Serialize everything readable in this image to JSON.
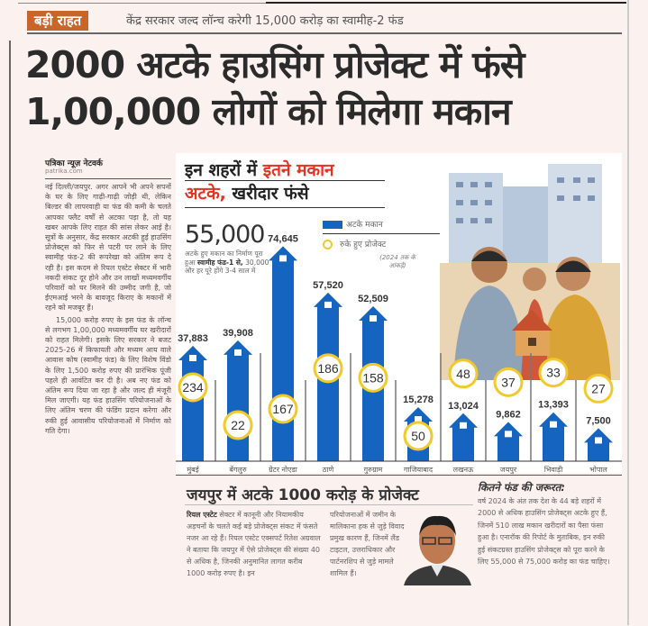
{
  "kicker": {
    "badge": "बड़ी राहत",
    "text": "केंद्र सरकार जल्द लॉन्च करेगी 15,000 करोड़ का स्वामीह-2 फंड"
  },
  "headline": {
    "line1": "2000 अटके हाउसिंग प्रोजेक्ट में फंसे",
    "line2": "1,00,000 लोगों को मिलेगा मकान"
  },
  "byline": {
    "name": "पत्रिका न्यूज़ नेटवर्क",
    "site": "patrika.com"
  },
  "article": {
    "paragraphs": [
      "नई दिल्ली/जयपुर. अगर आपने भी अपने सपनों के घर के लिए गाढ़ी-गाढ़ी जोड़ी थी, लेकिन बिल्डर की लापरवाही या फंड की कमी के चलते आपका फ्लैट वर्षों से अटका पड़ा है, तो यह खबर आपके लिए राहत की सांस लेकर आई है। सूत्रों के अनुसार, केंद्र सरकार अटकी हुई हाउसिंग प्रोजेक्ट्स को फिर से पटरी पर लाने के लिए स्वामीह फंड-2 की रूपरेखा को अंतिम रूप दे रही है। इस कदम से रियल एस्टेट सेक्टर में भारी नकदी संकट दूर होने और उन लाखों मध्यमवर्गीय परिवारों को घर मिलने की उम्मीद जगी है, जो ईएमआई भरने के बावजूद किराए के मकानों में रहने को मजबूर हैं।",
      "15,000 करोड़ रुपए के इस फंड के लॉन्च से लगभग 1,00,000 मध्यमवर्गीय घर खरीदारों को राहत मिलेगी। इसके लिए सरकार ने बजट 2025-26 में किफायती और मध्यम आय वाले आवास कोष (स्वामीह फंड) के लिए विशेष विंडो के लिए 1,500 करोड़ रुपए की प्रारंभिक पूंजी पहले ही आवंटित कर दी है। अब नए फंड को अंतिम रूप दिया जा रहा है और जल्द ही मंजूरी मिल जाएगी। यह फंड हाउसिंग परियोजनाओं के लिए अंतिम चरण की फंडिंग प्रदान करेगा और रुकी हुई आवासीय परियोजनाओं में निर्माण को गति देगा।"
    ]
  },
  "infographic": {
    "title_part1": "इन शहरों में ",
    "title_part2": "इतने मकान",
    "title_part3": "अटके,",
    "title_part4": " खरीदार फंसे",
    "highlight": "55,000",
    "highlight_note_1": "अटके हुए मकान का निर्माण पूरा हुआ",
    "highlight_note_2": "स्वामीह फंड-1 से,",
    "highlight_note_3": "30,000 और हर पूरे होंगे 3-4 साल में",
    "legend": {
      "bars": "अटके मकान",
      "circles": "रुके हुए प्रोजेक्ट",
      "note": "(2024 तक के आंकड़े)"
    },
    "colors": {
      "bar": "#1565c0",
      "circle": "#f2c92a",
      "red": "#e53322"
    }
  },
  "chart_data": {
    "type": "bar",
    "title": "इन शहरों में इतने मकान अटके, खरीदार फंसे",
    "categories": [
      "मुंबई",
      "बेंगलुरु",
      "ग्रेटर नोएडा",
      "ठाणे",
      "गुरुग्राम",
      "गाजियाबाद",
      "लखनऊ",
      "जयपुर",
      "भिवाड़ी",
      "भोपाल"
    ],
    "series": [
      {
        "name": "अटके मकान",
        "values": [
          37883,
          39908,
          74645,
          57520,
          52509,
          15278,
          13024,
          9862,
          13393,
          7500
        ],
        "labels": [
          "37,883",
          "39,908",
          "74,645",
          "57,520",
          "52,509",
          "15,278",
          "13,024",
          "9,862",
          "13,393",
          "7,500"
        ]
      },
      {
        "name": "रुके हुए प्रोजेक्ट",
        "values": [
          234,
          22,
          167,
          186,
          158,
          50,
          48,
          37,
          33,
          27
        ]
      }
    ],
    "xlabel": "",
    "ylabel": "",
    "ylim": [
      0,
      80000
    ]
  },
  "jaipur": {
    "title": "जयपुर में अटके 1000 करोड़ के प्रोजेक्ट",
    "col1_lead": "रियल एस्टेट",
    "col1": " सेक्टर में कानूनी और नियामकीय अड़चनों के चलते कई बड़े प्रोजेक्ट्स संकट में फंसते नजर आ रहे हैं। रियल एस्टेट एक्सपर्ट रितेश अग्रवाल ने बताया कि जयपुर में ऐसे प्रोजेक्ट्स की संख्या 40 से अधिक है, जिनकी अनुमानित लागत करीब 1000 करोड़ रुपए है। इन",
    "col2": "परियोजनाओं में जमीन के मालिकाना हक से जुड़े विवाद प्रमुख कारण हैं, जिनमें लैंड टाइटल, उत्तराधिकार और पार्टनरशिप से जुड़े मामले शामिल हैं।"
  },
  "fund": {
    "title": "कितने फंड की जरूरत:",
    "body": "वर्ष 2024 के अंत तक देश के 44 बड़े शहरों में 2000 से अधिक हाउसिंग प्रोजेक्ट्स अटके हुए हैं, जिनमें 510 लाख मकान खरीदारों का पैसा फंसा हुआ है। एनारॉक की रिपोर्ट के मुताबिक, इन रुकी हुई संकटग्रस्त हाउसिंग प्रोजेक्ट्स को पूरा करने के लिए 55,000 से 75,000 करोड़ का फंड चाहिए।"
  }
}
